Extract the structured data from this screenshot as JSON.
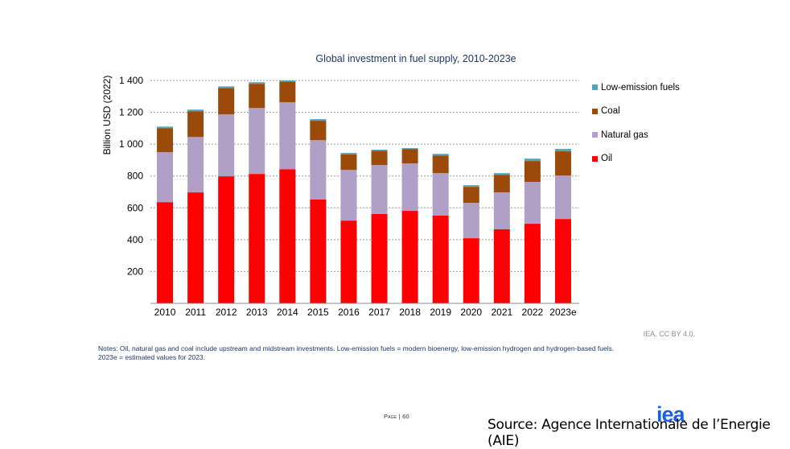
{
  "chart_data": {
    "type": "bar",
    "stacked": true,
    "title": "Global investment in fuel supply, 2010-2023e",
    "xlabel": "",
    "ylabel": "Billion USD (2022)",
    "ylim": [
      0,
      1400
    ],
    "yticks": [
      200,
      400,
      600,
      800,
      1000,
      1200,
      1400
    ],
    "ytick_labels": [
      "200",
      "400",
      "600",
      "800",
      "1 000",
      "1 200",
      "1 400"
    ],
    "grid": true,
    "legend_position": "right",
    "categories": [
      "2010",
      "2011",
      "2012",
      "2013",
      "2014",
      "2015",
      "2016",
      "2017",
      "2018",
      "2019",
      "2020",
      "2021",
      "2022",
      "2023e"
    ],
    "series": [
      {
        "name": "Oil",
        "color": "#ff0000",
        "values": [
          636,
          697,
          798,
          813,
          843,
          652,
          520,
          561,
          581,
          551,
          409,
          465,
          500,
          530
        ]
      },
      {
        "name": "Natural gas",
        "color": "#b09fc6",
        "values": [
          314,
          348,
          389,
          414,
          420,
          373,
          318,
          308,
          298,
          267,
          222,
          232,
          263,
          273
        ]
      },
      {
        "name": "Coal",
        "color": "#9c4a0a",
        "values": [
          151,
          162,
          166,
          152,
          130,
          122,
          98,
          89,
          91,
          111,
          101,
          111,
          131,
          152
        ]
      },
      {
        "name": "Low-emission fuels",
        "color": "#4ea6bf",
        "values": [
          9,
          10,
          10,
          10,
          7,
          10,
          9,
          7,
          5,
          10,
          10,
          10,
          15,
          15
        ]
      }
    ],
    "legend_order": [
      "Low-emission fuels",
      "Coal",
      "Natural gas",
      "Oil"
    ]
  },
  "legend": [
    {
      "label": "Low-emission fuels",
      "color": "#4ea6bf"
    },
    {
      "label": "Coal",
      "color": "#9c4a0a"
    },
    {
      "label": "Natural gas",
      "color": "#b09fc6"
    },
    {
      "label": "Oil",
      "color": "#ff0000"
    }
  ],
  "credit": "IEA. CC BY 4.0.",
  "notes": {
    "line1": "Notes: Oil, natural gas and coal include upstream and midstream investments. Low-emission fuels = modern bioenergy, low-emission hydrogen and hydrogen-based fuels.",
    "line2": "2023e = estimated values for 2023."
  },
  "footer": {
    "page_label": "Page",
    "page_separator": " | ",
    "page_number": "60",
    "logo_text": "iea",
    "source": "Source: Agence Internationale de l’Energie (AIE)"
  }
}
